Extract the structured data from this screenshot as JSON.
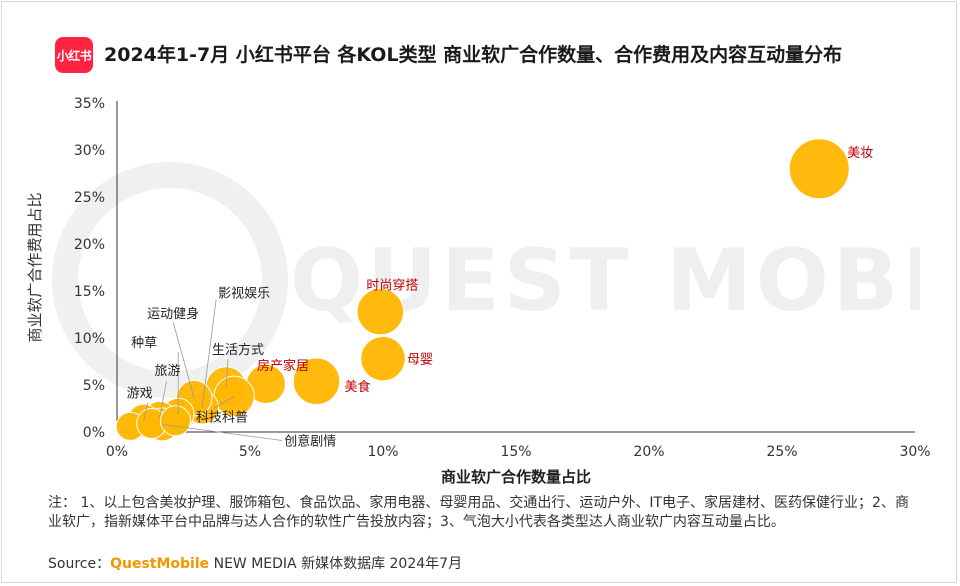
{
  "header": {
    "logo_text": "小红书",
    "title": "2024年1-7月 小红书平台 各KOL类型 商业软广合作数量、合作费用及内容互动量分布"
  },
  "watermark": {
    "text": "QUEST MOBILE"
  },
  "chart_data": {
    "type": "scatter",
    "bubble": true,
    "xlabel": "商业软广合作数量占比",
    "ylabel": "商业软广合作费用占比",
    "xlim": [
      0,
      30
    ],
    "ylim": [
      0,
      35
    ],
    "x_ticks": [
      "0%",
      "5%",
      "10%",
      "15%",
      "20%",
      "25%",
      "30%"
    ],
    "y_ticks": [
      "0%",
      "5%",
      "10%",
      "15%",
      "20%",
      "25%",
      "30%",
      "35%"
    ],
    "grid": false,
    "bubble_color": "#ffb600",
    "highlight_label_color": "#c00000",
    "points": [
      {
        "label": "美妆",
        "x": 26.4,
        "y": 28.0,
        "size": 1.0,
        "highlight": true
      },
      {
        "label": "时尚穿搭",
        "x": 9.9,
        "y": 12.8,
        "size": 0.6,
        "highlight": true
      },
      {
        "label": "母婴",
        "x": 10.0,
        "y": 7.8,
        "size": 0.55,
        "highlight": true
      },
      {
        "label": "美食",
        "x": 7.5,
        "y": 5.4,
        "size": 0.6,
        "highlight": true
      },
      {
        "label": "房产家居",
        "x": 5.6,
        "y": 5.1,
        "size": 0.42,
        "highlight": true
      },
      {
        "label": "生活方式",
        "x": 4.1,
        "y": 4.8,
        "size": 0.45,
        "highlight": false
      },
      {
        "label": "科技科普",
        "x": 4.4,
        "y": 3.8,
        "size": 0.45,
        "highlight": false
      },
      {
        "label": "影视娱乐",
        "x": 3.2,
        "y": 2.6,
        "size": 0.3,
        "highlight": false
      },
      {
        "label": "运动健身",
        "x": 2.9,
        "y": 3.6,
        "size": 0.35,
        "highlight": false
      },
      {
        "label": "种草",
        "x": 2.3,
        "y": 1.9,
        "size": 0.28,
        "highlight": false
      },
      {
        "label": "旅游",
        "x": 1.6,
        "y": 1.5,
        "size": 0.3,
        "highlight": false
      },
      {
        "label": "游戏",
        "x": 1.0,
        "y": 1.2,
        "size": 0.3,
        "highlight": false
      },
      {
        "label": "创意剧情",
        "x": 1.7,
        "y": 0.8,
        "size": 0.3,
        "highlight": false
      },
      {
        "label": "",
        "x": 0.5,
        "y": 0.6,
        "size": 0.22,
        "highlight": false
      },
      {
        "label": "",
        "x": 1.3,
        "y": 0.9,
        "size": 0.25,
        "highlight": false
      },
      {
        "label": "",
        "x": 2.2,
        "y": 1.2,
        "size": 0.25,
        "highlight": false
      }
    ]
  },
  "footer": {
    "notes": "注：  1、以上包含美妆护理、服饰箱包、食品饮品、家用电器、母婴用品、交通出行、运动户外、IT电子、家居建材、医药保健行业；2、商业软广，指新媒体平台中品牌与达人合作的软性广告投放内容；3、气泡大小代表各类型达人商业软广内容互动量占比。",
    "source_prefix": "Source：",
    "source_brand": "QuestMobile",
    "source_suffix": " NEW MEDIA 新媒体数据库 2024年7月"
  }
}
